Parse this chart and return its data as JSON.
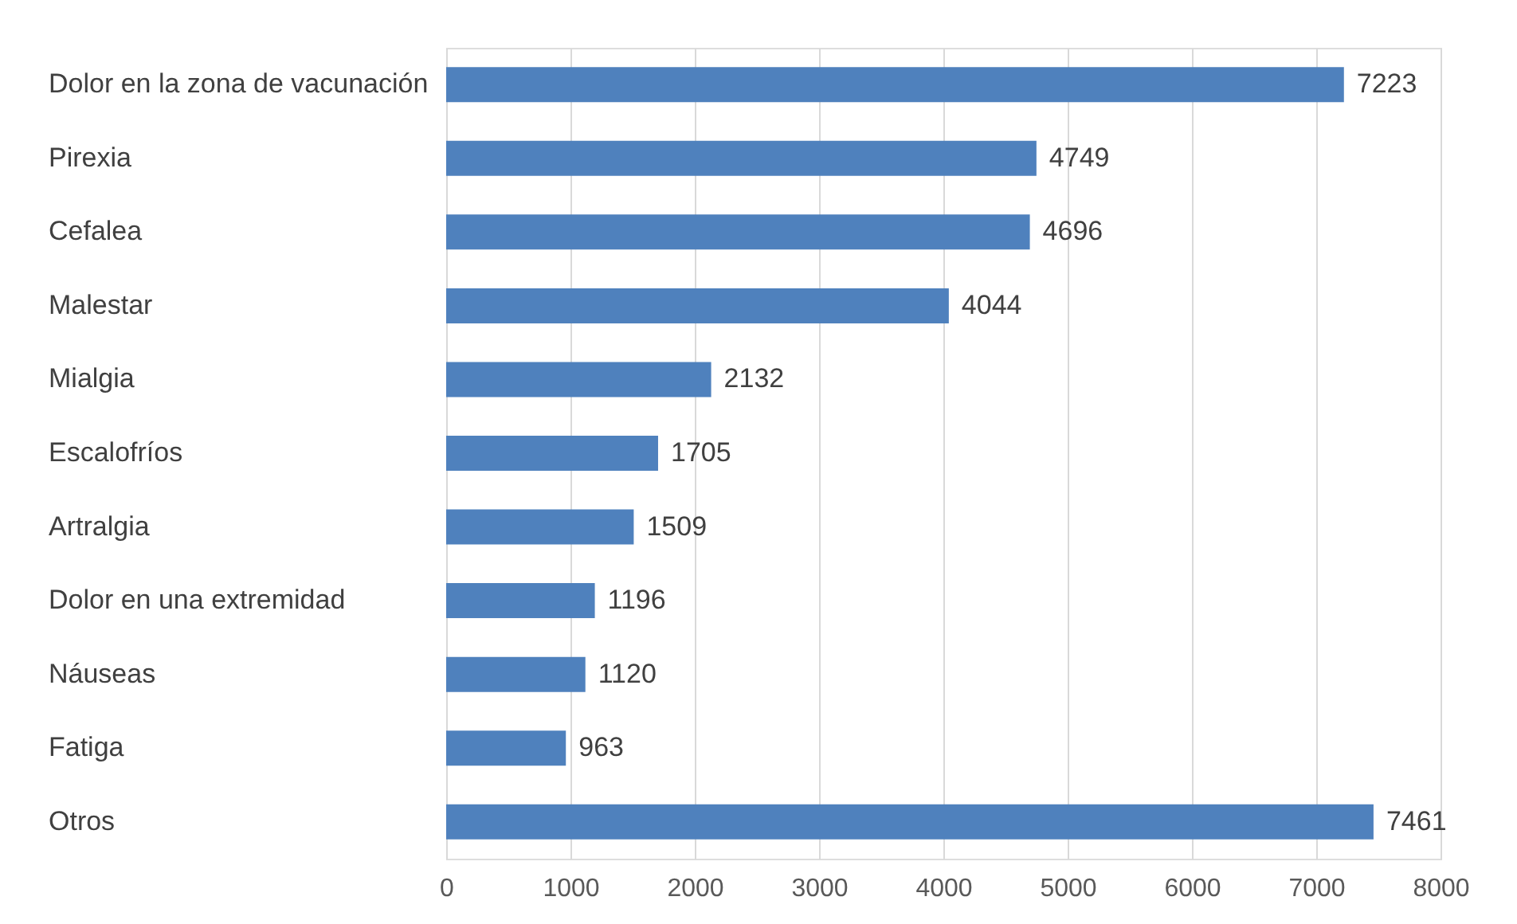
{
  "chart_data": {
    "type": "bar",
    "orientation": "horizontal",
    "categories": [
      "Dolor en la zona de vacunación",
      "Pirexia",
      "Cefalea",
      "Malestar",
      "Mialgia",
      "Escalofríos",
      "Artralgia",
      "Dolor en una extremidad",
      "Náuseas",
      "Fatiga",
      "Otros"
    ],
    "values": [
      7223,
      4749,
      4696,
      4044,
      2132,
      1705,
      1509,
      1196,
      1120,
      963,
      7461
    ],
    "color": "#4f81bd",
    "xlim": [
      0,
      8000
    ],
    "xticks": [
      0,
      1000,
      2000,
      3000,
      4000,
      5000,
      6000,
      7000,
      8000
    ],
    "grid": "x",
    "data_labels": true
  }
}
